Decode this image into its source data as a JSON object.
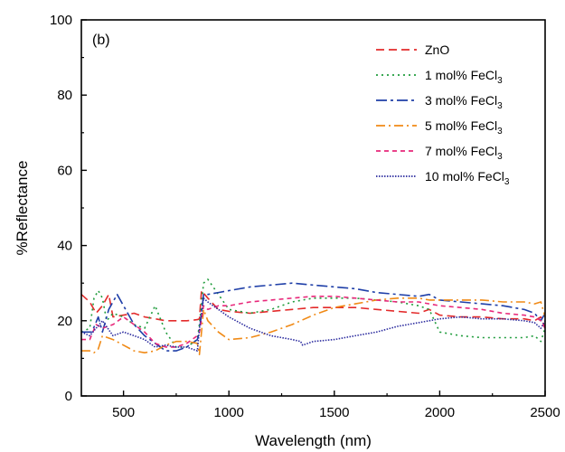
{
  "chart_data": {
    "type": "line",
    "panel_label": "(b)",
    "xlabel": "Wavelength (nm)",
    "ylabel": "%Reflectance",
    "xlim": [
      300,
      2500
    ],
    "ylim": [
      0,
      100
    ],
    "xticks": [
      500,
      1000,
      1500,
      2000,
      2500
    ],
    "yticks": [
      0,
      20,
      40,
      60,
      80,
      100
    ],
    "grid": false,
    "legend_position": "top-right",
    "series": [
      {
        "name": "ZnO",
        "legend": {
          "main": "ZnO",
          "sub": ""
        },
        "color": "#e32b2b",
        "dash": "9,5",
        "x": [
          300,
          340,
          370,
          400,
          430,
          450,
          500,
          550,
          600,
          650,
          700,
          750,
          800,
          850,
          860,
          870,
          900,
          950,
          1000,
          1100,
          1200,
          1300,
          1400,
          1500,
          1600,
          1700,
          1800,
          1900,
          1950,
          2000,
          2100,
          2200,
          2300,
          2400,
          2450,
          2480,
          2500
        ],
        "y": [
          27,
          25,
          22,
          24,
          27,
          21,
          21.5,
          22,
          21,
          20.5,
          20,
          20,
          20,
          20.3,
          20.5,
          28,
          26,
          23,
          22.5,
          22,
          22.5,
          23,
          23.5,
          23.5,
          23.5,
          23,
          22.5,
          22,
          23,
          21.5,
          21,
          21,
          20.5,
          20.5,
          20,
          21,
          18
        ]
      },
      {
        "name": "1 mol% FeCl3",
        "legend": {
          "main": "1 mol% FeCl",
          "sub": "3"
        },
        "color": "#1f9c3c",
        "dash": "2,4",
        "x": [
          300,
          340,
          360,
          380,
          400,
          420,
          450,
          500,
          550,
          600,
          650,
          700,
          750,
          800,
          850,
          860,
          880,
          900,
          950,
          1000,
          1100,
          1200,
          1300,
          1400,
          1500,
          1600,
          1700,
          1800,
          1900,
          1950,
          2000,
          2100,
          2200,
          2300,
          2400,
          2450,
          2480,
          2500
        ],
        "y": [
          17,
          18,
          26,
          28,
          26,
          20,
          22,
          21,
          19,
          18,
          24,
          17,
          13,
          13,
          15,
          19,
          30,
          31,
          27,
          23,
          22,
          23,
          25,
          26,
          26,
          26,
          25.5,
          25,
          24,
          23,
          17,
          16,
          15.5,
          15.5,
          15.5,
          16,
          14.5,
          18
        ]
      },
      {
        "name": "3 mol% FeCl3",
        "legend": {
          "main": "3 mol% FeCl",
          "sub": "3"
        },
        "color": "#1f3fa8",
        "dash": "12,4,3,4",
        "x": [
          300,
          350,
          380,
          400,
          430,
          470,
          500,
          550,
          600,
          650,
          700,
          750,
          800,
          850,
          860,
          880,
          900,
          950,
          1000,
          1100,
          1200,
          1300,
          1400,
          1500,
          1600,
          1700,
          1800,
          1900,
          1950,
          2000,
          2100,
          2200,
          2300,
          2400,
          2450,
          2480,
          2500
        ],
        "y": [
          17,
          17,
          21,
          17,
          23,
          27,
          24,
          19,
          16,
          14,
          12,
          12,
          13,
          15,
          17,
          27,
          27,
          27.5,
          28,
          29,
          29.5,
          30,
          29.5,
          29,
          28.5,
          27.5,
          27,
          26.5,
          27,
          25.5,
          25,
          24.5,
          24,
          23,
          22,
          20,
          22
        ]
      },
      {
        "name": "5 mol% FeCl3",
        "legend": {
          "main": "5 mol% FeCl",
          "sub": "3"
        },
        "color": "#f08a16",
        "dash": "10,4,2,4",
        "x": [
          300,
          340,
          360,
          380,
          400,
          450,
          500,
          550,
          600,
          650,
          700,
          750,
          800,
          850,
          860,
          880,
          900,
          950,
          1000,
          1100,
          1200,
          1300,
          1400,
          1500,
          1600,
          1700,
          1800,
          1900,
          1950,
          2000,
          2100,
          2200,
          2300,
          2400,
          2450,
          2480,
          2500
        ],
        "y": [
          12,
          12,
          11.5,
          12.5,
          16,
          15,
          13.5,
          12,
          11.5,
          12,
          13.5,
          14.5,
          14.5,
          14,
          11,
          23,
          20,
          17,
          15,
          15.5,
          17,
          19,
          21.5,
          23.5,
          24.5,
          25.5,
          26,
          26,
          25.5,
          25.5,
          25.5,
          25.5,
          25,
          25,
          24.5,
          25,
          21
        ]
      },
      {
        "name": "7 mol% FeCl3",
        "legend": {
          "main": "7 mol% FeCl",
          "sub": "3"
        },
        "color": "#e8287a",
        "dash": "5,4",
        "x": [
          300,
          340,
          370,
          400,
          450,
          500,
          550,
          600,
          650,
          700,
          750,
          800,
          850,
          860,
          880,
          900,
          950,
          1000,
          1100,
          1200,
          1300,
          1400,
          1500,
          1600,
          1700,
          1800,
          1900,
          1950,
          2000,
          2100,
          2200,
          2300,
          2400,
          2450,
          2480,
          2500
        ],
        "y": [
          15,
          15,
          19,
          18,
          19,
          21,
          19,
          17,
          14,
          13,
          13,
          14,
          16,
          17,
          24,
          23,
          24,
          24,
          25,
          25.5,
          26,
          26.5,
          26.5,
          26,
          25.5,
          25,
          25,
          24.5,
          24,
          23.5,
          23,
          22,
          21.5,
          21,
          20,
          18
        ]
      },
      {
        "name": "10 mol% FeCl3",
        "legend": {
          "main": "10 mol% FeCl",
          "sub": "3"
        },
        "color": "#2a2a9e",
        "dash": "1.5,1.5",
        "x": [
          300,
          340,
          370,
          400,
          450,
          500,
          550,
          600,
          650,
          700,
          750,
          800,
          850,
          860,
          880,
          900,
          950,
          1000,
          1100,
          1200,
          1300,
          1340,
          1350,
          1400,
          1500,
          1600,
          1700,
          1800,
          1900,
          1950,
          2000,
          2100,
          2200,
          2300,
          2400,
          2450,
          2480,
          2500
        ],
        "y": [
          17,
          16,
          18,
          20,
          16,
          17,
          16,
          15,
          13,
          13.5,
          13,
          13,
          12,
          18,
          26,
          25,
          23,
          21,
          18,
          16,
          15,
          14.5,
          13.5,
          14.5,
          15,
          16,
          17,
          18.5,
          19.5,
          20,
          20.5,
          21,
          20.5,
          20.5,
          20,
          19.5,
          18,
          20
        ]
      }
    ]
  }
}
